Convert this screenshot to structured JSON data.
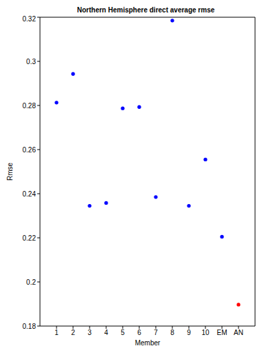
{
  "chart_data": {
    "type": "scatter",
    "title": "Northern Hemisphere direct average rmse",
    "x_label": "Member",
    "y_label": "Rmse",
    "categories": [
      "1",
      "2",
      "3",
      "4",
      "5",
      "6",
      "7",
      "8",
      "9",
      "10",
      "EM",
      "AN"
    ],
    "values": [
      0.2813,
      0.2943,
      0.2345,
      0.2358,
      0.2787,
      0.2793,
      0.2385,
      0.3185,
      0.2345,
      0.2555,
      0.2205,
      0.1897
    ],
    "colors": [
      "#0000ff",
      "#0000ff",
      "#0000ff",
      "#0000ff",
      "#0000ff",
      "#0000ff",
      "#0000ff",
      "#0000ff",
      "#0000ff",
      "#0000ff",
      "#0000ff",
      "#ff0000"
    ],
    "marker": "circle",
    "ylim": [
      0.18,
      0.32
    ],
    "yticks": [
      0.18,
      0.2,
      0.22,
      0.24,
      0.26,
      0.28,
      0.3,
      0.32
    ],
    "grid": false
  }
}
